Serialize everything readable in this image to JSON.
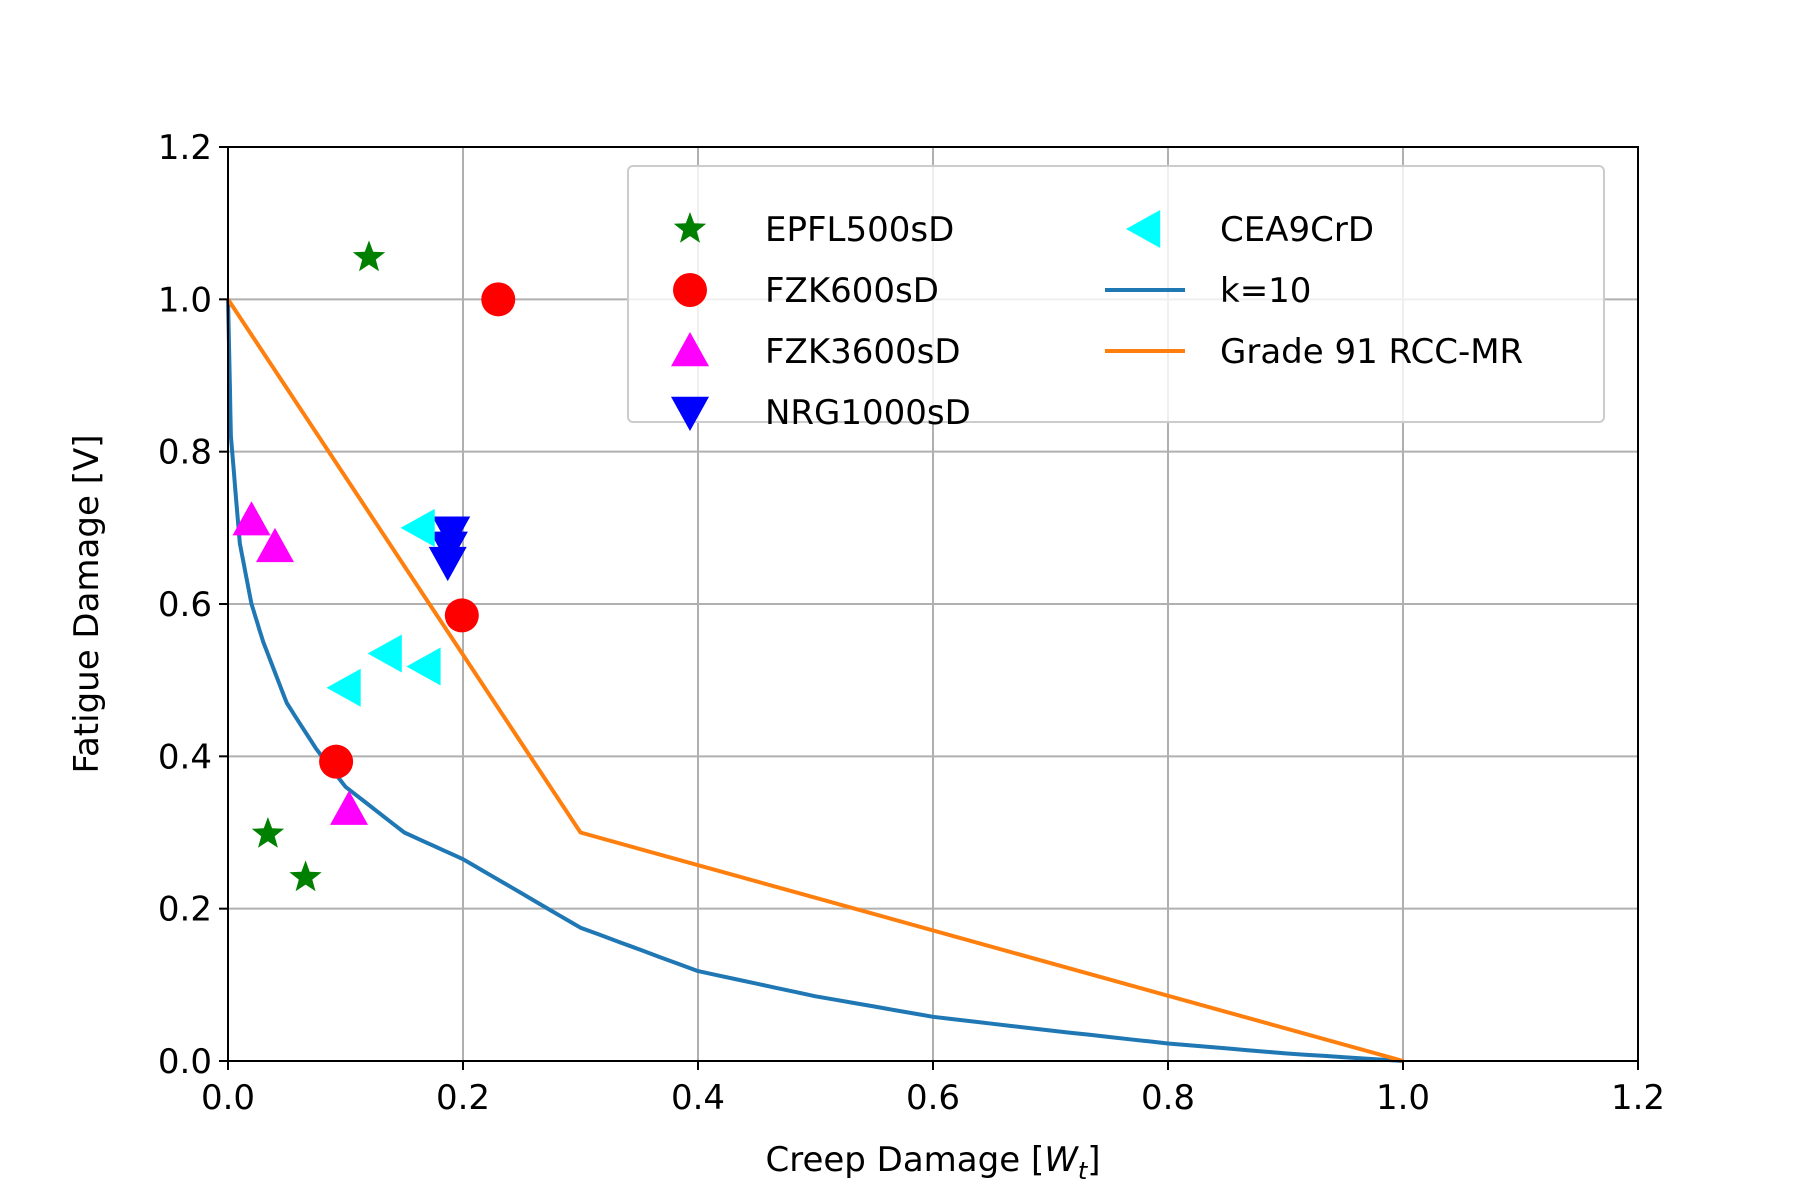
{
  "chart_data": {
    "type": "scatter",
    "title": "",
    "xlabel_text": "Creep Damage [",
    "xlabel_math": "W",
    "xlabel_sub": "t",
    "xlabel_close": "]",
    "ylabel": "Fatigue Damage [V]",
    "xlim": [
      0.0,
      1.2
    ],
    "ylim": [
      0.0,
      1.2
    ],
    "grid": true,
    "xticks": [
      "0.0",
      "0.2",
      "0.4",
      "0.6",
      "0.8",
      "1.0",
      "1.2"
    ],
    "yticks": [
      "0.0",
      "0.2",
      "0.4",
      "0.6",
      "0.8",
      "1.0",
      "1.2"
    ],
    "xtick_values": [
      0.0,
      0.2,
      0.4,
      0.6,
      0.8,
      1.0,
      1.2
    ],
    "ytick_values": [
      0.0,
      0.2,
      0.4,
      0.6,
      0.8,
      1.0,
      1.2
    ],
    "legend_placement": "upper-right",
    "series": [
      {
        "name": "EPFL500sD",
        "kind": "scatter",
        "marker": "star",
        "color": "#008000",
        "points": [
          [
            0.12,
            1.055
          ],
          [
            0.034,
            0.298
          ],
          [
            0.066,
            0.241
          ]
        ]
      },
      {
        "name": "FZK600sD",
        "kind": "scatter",
        "marker": "circle",
        "color": "#ff0000",
        "points": [
          [
            0.23,
            1.0
          ],
          [
            0.199,
            0.585
          ],
          [
            0.092,
            0.393
          ]
        ]
      },
      {
        "name": "FZK3600sD",
        "kind": "scatter",
        "marker": "triangle-up",
        "color": "#ff00ff",
        "points": [
          [
            0.02,
            0.71
          ],
          [
            0.04,
            0.675
          ],
          [
            0.103,
            0.33
          ]
        ]
      },
      {
        "name": "NRG1000sD",
        "kind": "scatter",
        "marker": "triangle-down",
        "color": "#0000ff",
        "points": [
          [
            0.19,
            0.695
          ],
          [
            0.188,
            0.675
          ],
          [
            0.187,
            0.655
          ]
        ]
      },
      {
        "name": "CEA9CrD",
        "kind": "scatter",
        "marker": "triangle-left",
        "color": "#00ffff",
        "points": [
          [
            0.163,
            0.7
          ],
          [
            0.135,
            0.535
          ],
          [
            0.168,
            0.518
          ],
          [
            0.1,
            0.49
          ]
        ]
      },
      {
        "name": "k=10",
        "kind": "line",
        "color": "#1f77b4",
        "formula": "(1 - x^(1/k))^k / (1 - 0.1^(1/k))^k ...",
        "k": 10,
        "points": [
          [
            0.0,
            1.0
          ],
          [
            0.0025,
            0.82
          ],
          [
            0.01,
            0.68
          ],
          [
            0.02,
            0.6
          ],
          [
            0.03,
            0.55
          ],
          [
            0.05,
            0.47
          ],
          [
            0.075,
            0.41
          ],
          [
            0.1,
            0.36
          ],
          [
            0.15,
            0.3
          ],
          [
            0.2,
            0.265
          ],
          [
            0.25,
            0.22
          ],
          [
            0.3,
            0.175
          ],
          [
            0.4,
            0.118
          ],
          [
            0.5,
            0.085
          ],
          [
            0.6,
            0.058
          ],
          [
            0.7,
            0.04
          ],
          [
            0.8,
            0.023
          ],
          [
            0.9,
            0.01
          ],
          [
            1.0,
            0.0
          ]
        ]
      },
      {
        "name": "Grade 91 RCC-MR",
        "kind": "line",
        "color": "#ff7f0e",
        "points": [
          [
            0.0,
            1.0
          ],
          [
            0.3,
            0.3
          ],
          [
            1.0,
            0.0
          ]
        ]
      }
    ]
  }
}
